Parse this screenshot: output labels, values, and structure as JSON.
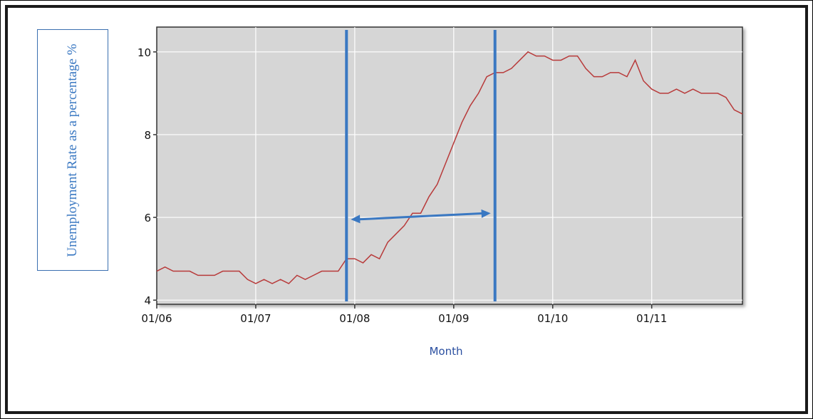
{
  "chart_data": {
    "type": "line",
    "xlabel": "Month",
    "ylabel": "Unemployment Rate as a percentage %",
    "y_ticks": [
      4,
      6,
      8,
      10
    ],
    "ylim": [
      3.9,
      10.6
    ],
    "x_tick_labels": [
      "01/06",
      "01/07",
      "01/08",
      "01/09",
      "01/10",
      "01/11"
    ],
    "x_start": "2006-01",
    "x_end": "2011-12",
    "grid": true,
    "series_color": "#b83a3a",
    "annotation_color": "#3a78c2",
    "series": [
      {
        "values": [
          4.7,
          4.8,
          4.7,
          4.7,
          4.7,
          4.6,
          4.6,
          4.6,
          4.7,
          4.7,
          4.7,
          4.5,
          4.4,
          4.5,
          4.4,
          4.5,
          4.4,
          4.6,
          4.5,
          4.6,
          4.7,
          4.7,
          4.7,
          5.0,
          5.0,
          4.9,
          5.1,
          5.0,
          5.4,
          5.6,
          5.8,
          6.1,
          6.1,
          6.5,
          6.8,
          7.3,
          7.8,
          8.3,
          8.7,
          9.0,
          9.4,
          9.5,
          9.5,
          9.6,
          9.8,
          10.0,
          9.9,
          9.9,
          9.8,
          9.8,
          9.9,
          9.9,
          9.6,
          9.4,
          9.4,
          9.5,
          9.5,
          9.4,
          9.8,
          9.3,
          9.1,
          9.0,
          9.0,
          9.1,
          9.0,
          9.1,
          9.0,
          9.0,
          9.0,
          8.9,
          8.6,
          8.5
        ]
      }
    ],
    "annotations": {
      "vertical_lines_x": [
        "2007-12",
        "2009-06"
      ],
      "arrow": {
        "from": [
          "2007-12",
          5.95
        ],
        "to": [
          "2009-06",
          6.1
        ]
      }
    }
  }
}
